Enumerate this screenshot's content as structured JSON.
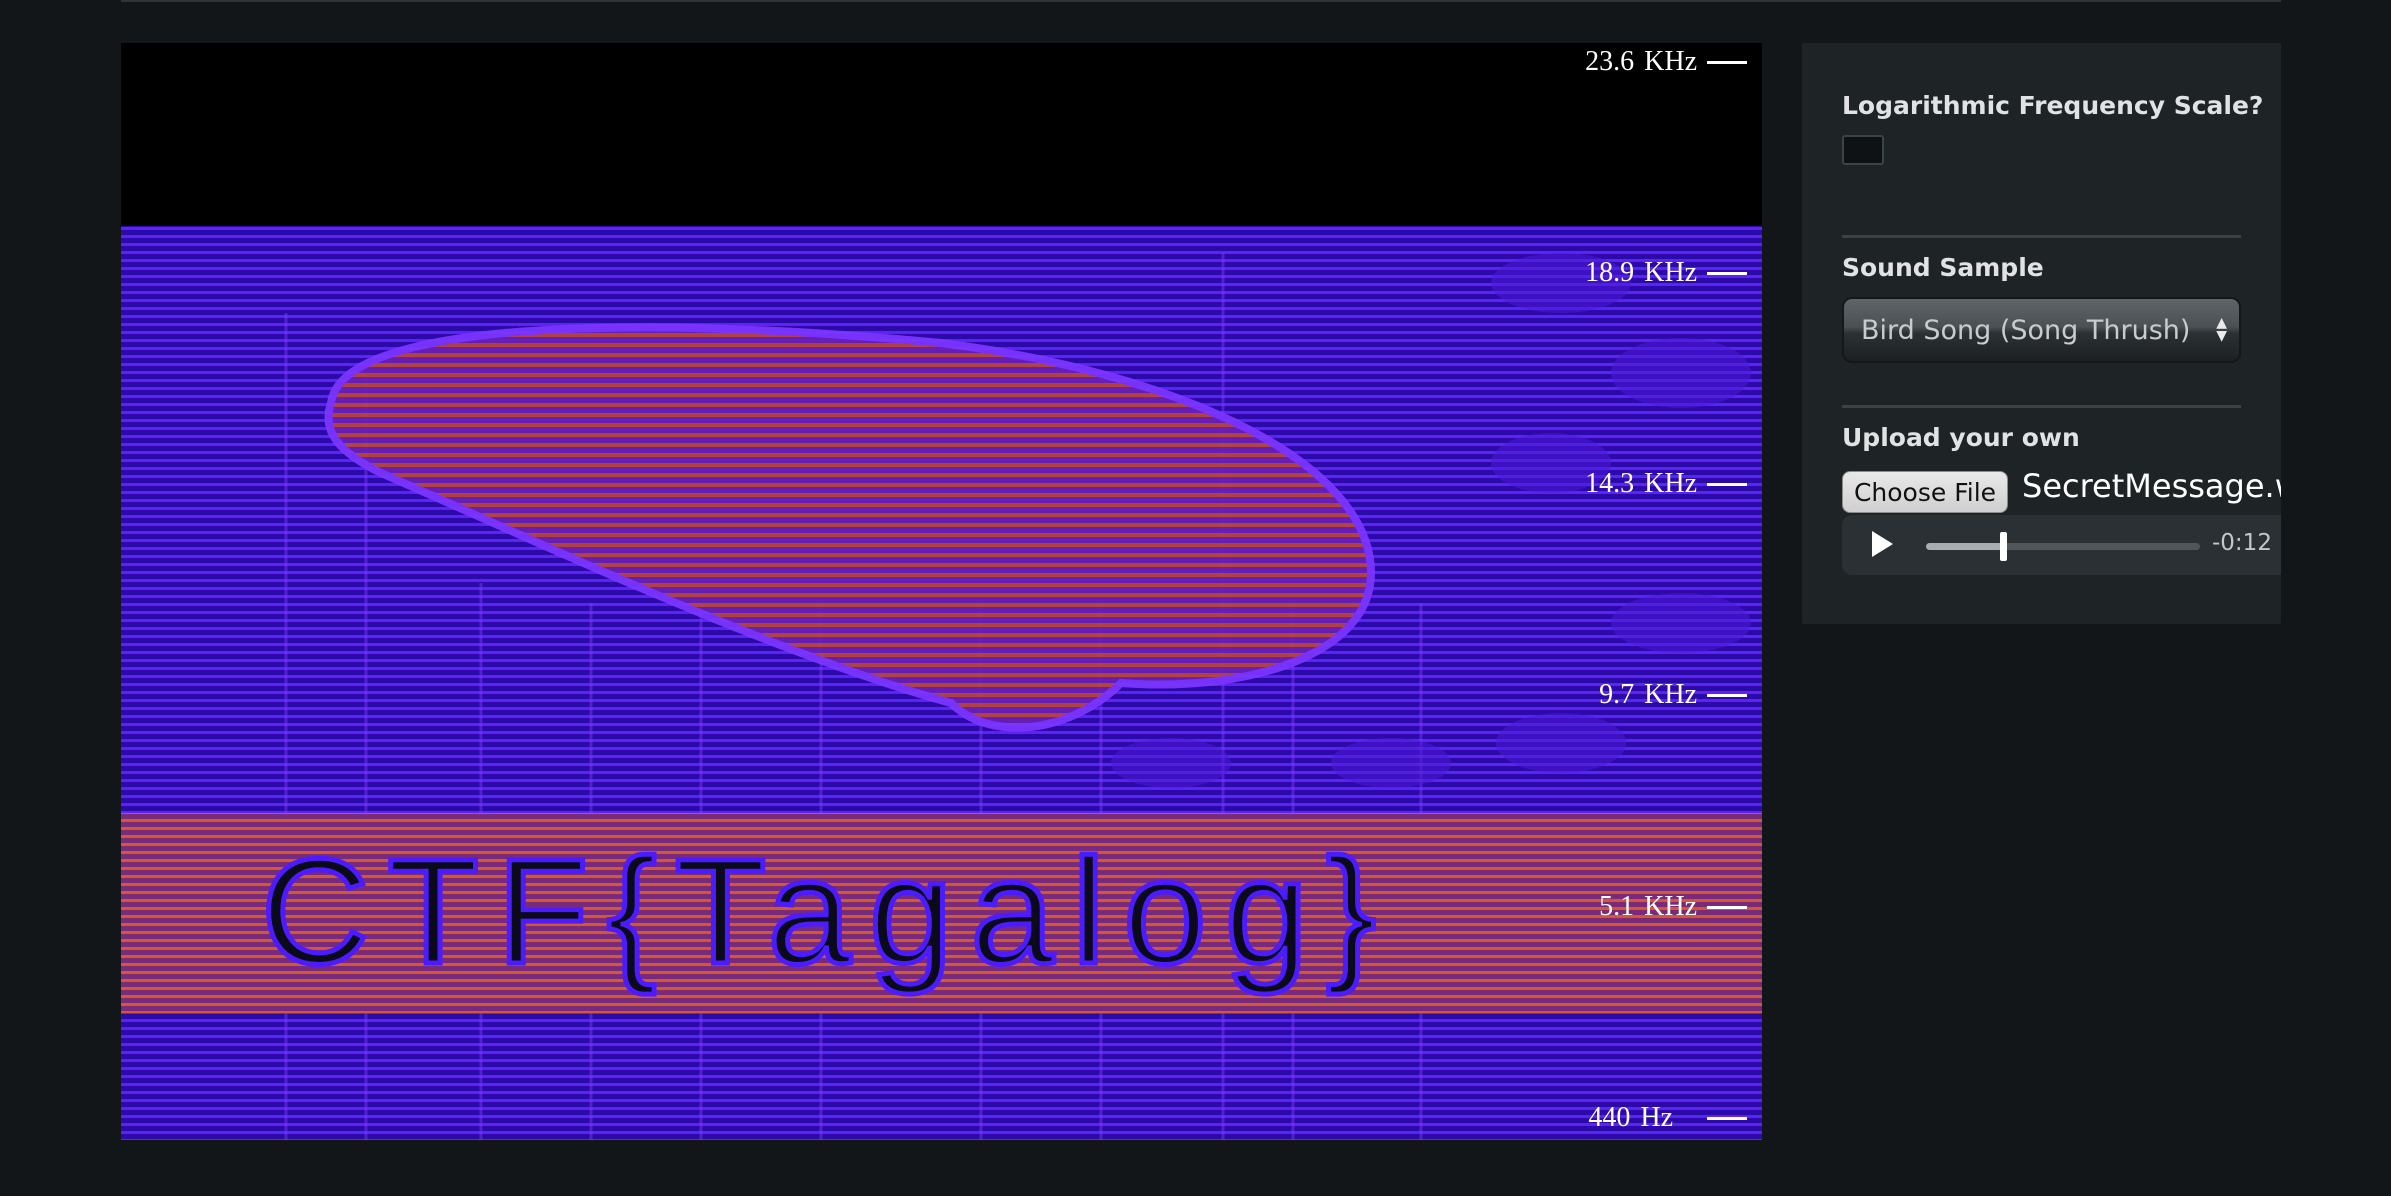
{
  "spectrogram": {
    "flag_text": "CTF{Tagalog}",
    "frequency_labels": [
      {
        "value": "23.6",
        "unit": "KHz"
      },
      {
        "value": "18.9",
        "unit": "KHz"
      },
      {
        "value": "14.3",
        "unit": "KHz"
      },
      {
        "value": "9.7",
        "unit": "KHz"
      },
      {
        "value": "5.1",
        "unit": "KHz"
      },
      {
        "value": "440",
        "unit": "Hz"
      }
    ],
    "colors": {
      "background": "#000000",
      "low": "#3a0fd0",
      "mid": "#7a2cff",
      "high": "#c8502e"
    }
  },
  "controls": {
    "log_scale_label": "Logarithmic Frequency Scale?",
    "log_scale_checked": false,
    "sound_sample_label": "Sound Sample",
    "sound_sample_selected": "Bird Song (Song Thrush)",
    "upload_label": "Upload your own",
    "choose_file_label": "Choose File",
    "file_name": "SecretMessage.w",
    "audio": {
      "play_icon": "play-icon",
      "progress": 0.28,
      "time_remaining": "-0:12"
    }
  }
}
